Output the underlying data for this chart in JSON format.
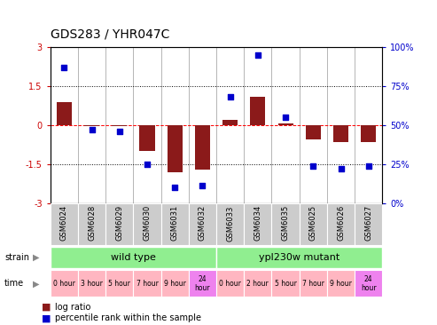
{
  "title": "GDS283 / YHR047C",
  "samples": [
    "GSM6024",
    "GSM6028",
    "GSM6029",
    "GSM6030",
    "GSM6031",
    "GSM6032",
    "GSM6033",
    "GSM6034",
    "GSM6035",
    "GSM6025",
    "GSM6026",
    "GSM6027"
  ],
  "log_ratio": [
    0.9,
    -0.05,
    -0.05,
    -1.0,
    -1.8,
    -1.7,
    0.2,
    1.1,
    0.05,
    -0.55,
    -0.65,
    -0.65
  ],
  "percentile": [
    87,
    47,
    46,
    25,
    10,
    11,
    68,
    95,
    55,
    24,
    22,
    24
  ],
  "bar_color": "#8B1A1A",
  "dot_color": "#0000CC",
  "ylim_left": [
    -3,
    3
  ],
  "ylim_right": [
    0,
    100
  ],
  "yticks_left": [
    -3,
    -1.5,
    0,
    1.5,
    3
  ],
  "ytick_labels_left": [
    "-3",
    "-1.5",
    "0",
    "1.5",
    "3"
  ],
  "yticks_right": [
    0,
    25,
    50,
    75,
    100
  ],
  "ytick_labels_right": [
    "0%",
    "25%",
    "50%",
    "75%",
    "100%"
  ],
  "strain_labels": [
    "wild type",
    "ypl230w mutant"
  ],
  "strain_color": "#90EE90",
  "time_labels_wt": [
    "0 hour",
    "3 hour",
    "5 hour",
    "7 hour",
    "9 hour",
    "24\nhour"
  ],
  "time_labels_mut": [
    "0 hour",
    "2 hour",
    "5 hour",
    "7 hour",
    "9 hour",
    "24\nhour"
  ],
  "time_color_light": "#FFB6C1",
  "time_color_dark": "#EE82EE",
  "legend_ratio_color": "#8B1A1A",
  "legend_dot_color": "#0000CC",
  "legend_ratio_label": "log ratio",
  "legend_dot_label": "percentile rank within the sample",
  "bar_width": 0.55,
  "axis_label_color_left": "#CC0000",
  "axis_label_color_right": "#0000CC",
  "sample_bg_color": "#CCCCCC",
  "title_fontsize": 10,
  "tick_fontsize": 7,
  "sample_fontsize": 6,
  "strain_fontsize": 8,
  "time_fontsize": 5.5,
  "legend_fontsize": 7
}
